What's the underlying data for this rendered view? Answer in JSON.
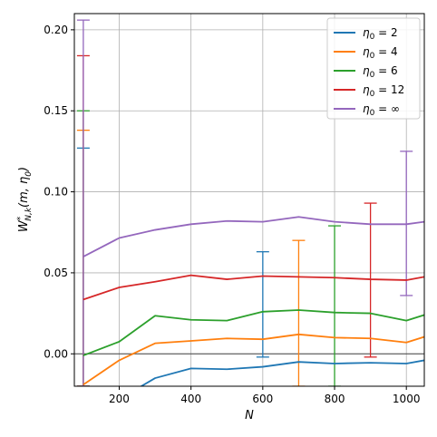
{
  "chart_data": {
    "type": "line",
    "xlabel": "N",
    "ylabel": "W*N,k(m, η0)",
    "ylabel_parts": {
      "base": "W",
      "sup": "*",
      "sub": "N,k",
      "args": "(m, η",
      "args_sub": "0",
      "args_end": ")"
    },
    "xlim": [
      75,
      1050
    ],
    "ylim": [
      -0.02,
      0.21
    ],
    "xticks": [
      200,
      400,
      600,
      800,
      1000
    ],
    "yticks": [
      0.0,
      0.05,
      0.1,
      0.15,
      0.2
    ],
    "xtick_labels": [
      "200",
      "400",
      "600",
      "800",
      "1000"
    ],
    "ytick_labels": [
      "0.00",
      "0.05",
      "0.10",
      "0.15",
      "0.20"
    ],
    "grid": true,
    "hline": 0.0,
    "legend_position": "top-right",
    "x": [
      100,
      200,
      300,
      400,
      500,
      600,
      700,
      800,
      900,
      1000,
      1050
    ],
    "series": [
      {
        "name": "η0 = 2",
        "legend_parts": {
          "sym": "η",
          "sub": "0",
          "rest": " = 2"
        },
        "color": "#1f77b4",
        "values": [
          -0.042,
          -0.028,
          -0.015,
          -0.009,
          -0.0095,
          -0.008,
          -0.005,
          -0.006,
          -0.0055,
          -0.006,
          -0.004
        ],
        "error_bar": {
          "x": 600,
          "low": -0.002,
          "high": 0.063
        }
      },
      {
        "name": "η0 = 4",
        "legend_parts": {
          "sym": "η",
          "sub": "0",
          "rest": " = 4"
        },
        "color": "#ff7f0e",
        "values": [
          -0.019,
          -0.004,
          0.0065,
          0.008,
          0.0095,
          0.009,
          0.012,
          0.01,
          0.0095,
          0.007,
          0.0105
        ],
        "error_bar": {
          "x": 700,
          "low": -0.02,
          "high": 0.07
        }
      },
      {
        "name": "η0 = 6",
        "legend_parts": {
          "sym": "η",
          "sub": "0",
          "rest": " = 6"
        },
        "color": "#2ca02c",
        "values": [
          -0.001,
          0.0075,
          0.0235,
          0.021,
          0.0205,
          0.026,
          0.027,
          0.0255,
          0.025,
          0.0205,
          0.024
        ],
        "error_bar": {
          "x": 800,
          "low": -0.02,
          "high": 0.079
        }
      },
      {
        "name": "η0 = 12",
        "legend_parts": {
          "sym": "η",
          "sub": "0",
          "rest": " = 12"
        },
        "color": "#d62728",
        "values": [
          0.0335,
          0.041,
          0.0445,
          0.0485,
          0.046,
          0.048,
          0.0475,
          0.047,
          0.046,
          0.0455,
          0.0475
        ],
        "error_bar": {
          "x": 900,
          "low": -0.002,
          "high": 0.093
        }
      },
      {
        "name": "η0 = ∞",
        "legend_parts": {
          "sym": "η",
          "sub": "0",
          "rest": " = ∞"
        },
        "color": "#9467bd",
        "values": [
          0.06,
          0.0715,
          0.0765,
          0.08,
          0.082,
          0.0815,
          0.0845,
          0.0815,
          0.08,
          0.08,
          0.0815
        ],
        "error_bar": {
          "x": 1000,
          "low": 0.036,
          "high": 0.125
        }
      }
    ],
    "left_error_bars": [
      {
        "series": "η0 = 2",
        "x": 100,
        "low": -0.02,
        "high": 0.127,
        "color": "#1f77b4"
      },
      {
        "series": "η0 = 4",
        "x": 100,
        "low": -0.02,
        "high": 0.138,
        "color": "#ff7f0e"
      },
      {
        "series": "η0 = 6",
        "x": 100,
        "low": -0.02,
        "high": 0.15,
        "color": "#2ca02c"
      },
      {
        "series": "η0 = 12",
        "x": 100,
        "low": -0.02,
        "high": 0.184,
        "color": "#d62728"
      },
      {
        "series": "η0 = ∞",
        "x": 100,
        "low": -0.02,
        "high": 0.206,
        "color": "#9467bd"
      }
    ]
  }
}
